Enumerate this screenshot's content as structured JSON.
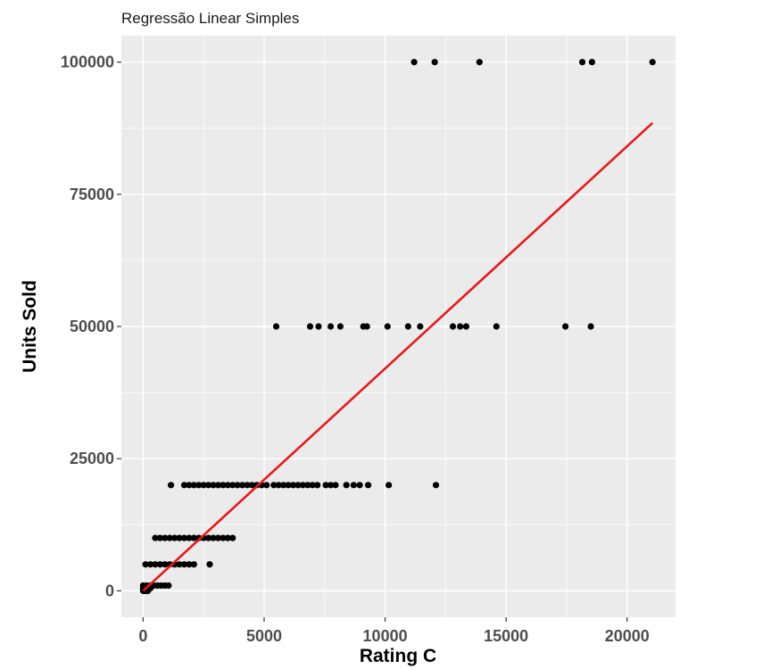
{
  "chart_data": {
    "type": "scatter",
    "title": "Regressão Linear Simples",
    "xlabel": "Rating C",
    "ylabel": "Units Sold",
    "xlim": [
      -900,
      22000
    ],
    "ylim": [
      -5000,
      105000
    ],
    "x_ticks": [
      0,
      5000,
      10000,
      15000,
      20000
    ],
    "y_ticks": [
      0,
      25000,
      50000,
      75000,
      100000
    ],
    "grid": true,
    "background": "#ebebeb",
    "point_color": "#000000",
    "fit_color": "#e41a1c",
    "series": [
      {
        "points": [
          [
            11200,
            100000
          ],
          [
            12050,
            100000
          ],
          [
            13900,
            100000
          ],
          [
            18150,
            100000
          ],
          [
            18550,
            100000
          ],
          [
            21050,
            100000
          ],
          [
            5500,
            50000
          ],
          [
            6900,
            50000
          ],
          [
            7250,
            50000
          ],
          [
            7750,
            50000
          ],
          [
            8150,
            50000
          ],
          [
            9100,
            50000
          ],
          [
            9250,
            50000
          ],
          [
            10100,
            50000
          ],
          [
            10950,
            50000
          ],
          [
            11450,
            50000
          ],
          [
            12800,
            50000
          ],
          [
            13100,
            50000
          ],
          [
            13350,
            50000
          ],
          [
            14600,
            50000
          ],
          [
            17450,
            50000
          ],
          [
            18500,
            50000
          ],
          [
            1150,
            20000
          ],
          [
            1700,
            20000
          ],
          [
            1900,
            20000
          ],
          [
            2100,
            20000
          ],
          [
            2300,
            20000
          ],
          [
            2500,
            20000
          ],
          [
            2700,
            20000
          ],
          [
            2900,
            20000
          ],
          [
            3100,
            20000
          ],
          [
            3300,
            20000
          ],
          [
            3500,
            20000
          ],
          [
            3700,
            20000
          ],
          [
            3900,
            20000
          ],
          [
            4100,
            20000
          ],
          [
            4300,
            20000
          ],
          [
            4500,
            20000
          ],
          [
            4700,
            20000
          ],
          [
            4900,
            20000
          ],
          [
            5100,
            20000
          ],
          [
            5400,
            20000
          ],
          [
            5600,
            20000
          ],
          [
            5800,
            20000
          ],
          [
            6000,
            20000
          ],
          [
            6200,
            20000
          ],
          [
            6400,
            20000
          ],
          [
            6600,
            20000
          ],
          [
            6800,
            20000
          ],
          [
            7000,
            20000
          ],
          [
            7200,
            20000
          ],
          [
            7550,
            20000
          ],
          [
            7750,
            20000
          ],
          [
            7950,
            20000
          ],
          [
            8400,
            20000
          ],
          [
            8700,
            20000
          ],
          [
            8950,
            20000
          ],
          [
            9300,
            20000
          ],
          [
            10150,
            20000
          ],
          [
            12100,
            20000
          ],
          [
            500,
            10000
          ],
          [
            700,
            10000
          ],
          [
            900,
            10000
          ],
          [
            1100,
            10000
          ],
          [
            1300,
            10000
          ],
          [
            1500,
            10000
          ],
          [
            1700,
            10000
          ],
          [
            1900,
            10000
          ],
          [
            2100,
            10000
          ],
          [
            2300,
            10000
          ],
          [
            2500,
            10000
          ],
          [
            2700,
            10000
          ],
          [
            2900,
            10000
          ],
          [
            3100,
            10000
          ],
          [
            3300,
            10000
          ],
          [
            3500,
            10000
          ],
          [
            3700,
            10000
          ],
          [
            100,
            5000
          ],
          [
            300,
            5000
          ],
          [
            500,
            5000
          ],
          [
            700,
            5000
          ],
          [
            900,
            5000
          ],
          [
            1100,
            5000
          ],
          [
            1300,
            5000
          ],
          [
            1500,
            5000
          ],
          [
            1700,
            5000
          ],
          [
            1900,
            5000
          ],
          [
            2100,
            5000
          ],
          [
            2750,
            5000
          ],
          [
            0,
            1000
          ],
          [
            150,
            1000
          ],
          [
            300,
            1000
          ],
          [
            450,
            1000
          ],
          [
            600,
            1000
          ],
          [
            750,
            1000
          ],
          [
            900,
            1000
          ],
          [
            1050,
            1000
          ],
          [
            0,
            500
          ],
          [
            100,
            500
          ],
          [
            200,
            500
          ],
          [
            300,
            500
          ],
          [
            0,
            0
          ],
          [
            50,
            0
          ],
          [
            100,
            0
          ],
          [
            150,
            0
          ],
          [
            200,
            0
          ]
        ]
      }
    ],
    "fit_line": {
      "x": [
        0,
        21050
      ],
      "y": [
        0,
        88500
      ]
    }
  }
}
